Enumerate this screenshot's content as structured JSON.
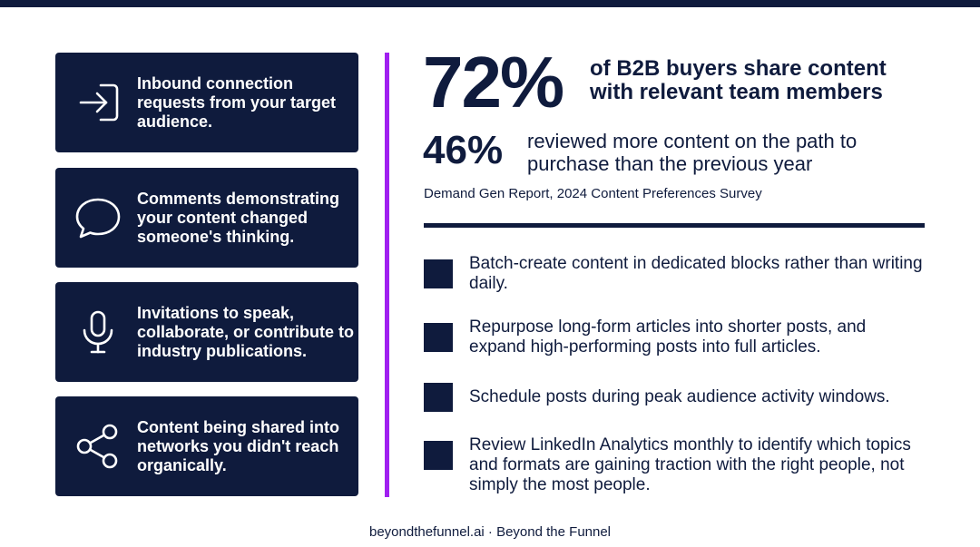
{
  "cards": [
    {
      "icon": "sign-in-icon",
      "text": "Inbound connection requests from your target audience."
    },
    {
      "icon": "speech-bubble-icon",
      "text": "Comments demonstrating your content changed someone's thinking."
    },
    {
      "icon": "microphone-icon",
      "text": "Invitations to speak, collaborate, or contribute to industry publications."
    },
    {
      "icon": "share-icon",
      "text": "Content being shared into networks you didn't reach organically."
    }
  ],
  "stats": {
    "primary_value": "72%",
    "primary_text": "of B2B buyers share content with relevant team members",
    "secondary_value": "46%",
    "secondary_text": "reviewed more content on the path to purchase than the previous year",
    "source": "Demand Gen Report, 2024 Content Preferences Survey"
  },
  "tips": [
    "Batch-create content in dedicated blocks rather than writing daily.",
    "Repurpose long-form articles into shorter posts, and expand high-performing posts into full articles.",
    "Schedule posts during peak audience activity windows.",
    "Review LinkedIn Analytics monthly to identify which topics and formats are gaining traction with the right people, not simply the most people."
  ],
  "footer": "beyondthefunnel.ai · Beyond the Funnel",
  "colors": {
    "navy": "#0f1b3d",
    "accent_purple": "#a020f0",
    "background": "#ffffff"
  }
}
